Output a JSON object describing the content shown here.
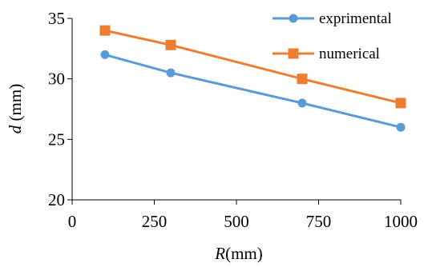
{
  "chart_data": {
    "type": "line",
    "xlabel": {
      "italic": "R",
      "rest": "(mm)"
    },
    "ylabel": {
      "italic": "d",
      "rest": " (mm)"
    },
    "xlim": [
      0,
      1000
    ],
    "ylim": [
      20,
      35
    ],
    "xticks": [
      0,
      250,
      500,
      750,
      1000
    ],
    "yticks": [
      20,
      25,
      30,
      35
    ],
    "grid": false,
    "legend_position": "top-right",
    "series": [
      {
        "name": "exprimental",
        "color": "#5B9BD5",
        "marker": "circle",
        "x": [
          100,
          300,
          700,
          1000
        ],
        "y": [
          32,
          30.5,
          28,
          26
        ]
      },
      {
        "name": "numerical",
        "color": "#ED7D31",
        "marker": "square",
        "x": [
          100,
          300,
          700,
          1000
        ],
        "y": [
          34,
          32.8,
          30,
          28
        ]
      }
    ]
  }
}
